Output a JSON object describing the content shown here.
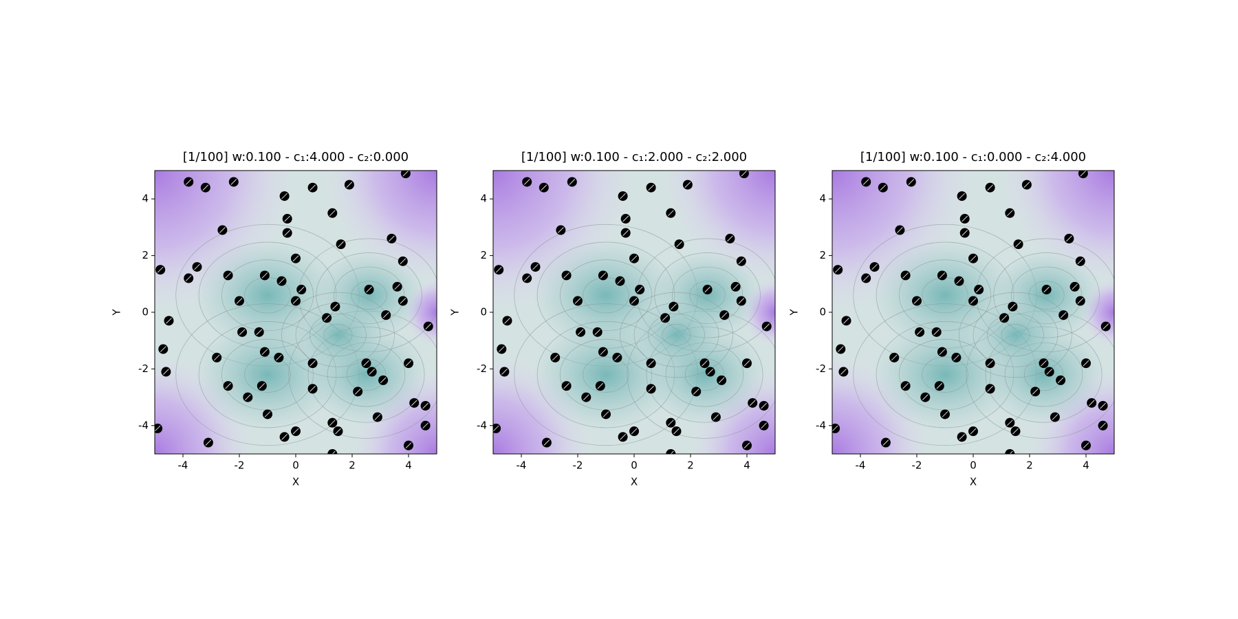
{
  "chart_data": [
    {
      "type": "scatter",
      "title": "[1/100] w:0.100 - c₁:4.000 - c₂:0.000",
      "xlabel": "X",
      "ylabel": "Y",
      "xlim": [
        -5,
        5
      ],
      "ylim": [
        -5,
        5
      ],
      "xticks": [
        -4,
        -2,
        0,
        2,
        4
      ],
      "yticks": [
        -4,
        -2,
        0,
        2,
        4
      ],
      "color": "#000000",
      "x": [
        -3.8,
        -3.2,
        -2.2,
        -0.4,
        0.6,
        1.9,
        3.9,
        -2.6,
        -0.3,
        1.3,
        -0.3,
        1.6,
        3.4,
        3.8,
        0.0,
        -4.8,
        -3.5,
        -3.8,
        -2.4,
        -1.1,
        -0.5,
        0.2,
        2.6,
        3.6,
        3.8,
        -2.0,
        0.0,
        1.4,
        1.1,
        3.2,
        4.7,
        -4.5,
        -1.9,
        -1.3,
        -4.7,
        -2.8,
        -1.1,
        -0.6,
        0.6,
        2.5,
        2.7,
        3.1,
        4.0,
        -4.6,
        -2.4,
        -1.2,
        0.6,
        2.2,
        -1.7,
        -1.0,
        1.3,
        1.5,
        2.9,
        4.2,
        4.6,
        -4.9,
        -3.1,
        -0.4,
        0.0,
        1.3,
        4.0,
        4.6
      ],
      "y": [
        4.6,
        4.4,
        4.6,
        4.1,
        4.4,
        4.5,
        4.9,
        2.9,
        3.3,
        3.5,
        2.8,
        2.4,
        2.6,
        1.8,
        1.9,
        1.5,
        1.6,
        1.2,
        1.3,
        1.3,
        1.1,
        0.8,
        0.8,
        0.9,
        0.4,
        0.4,
        0.4,
        0.2,
        -0.2,
        -0.1,
        -0.5,
        -0.3,
        -0.7,
        -0.7,
        -1.3,
        -1.6,
        -1.4,
        -1.6,
        -1.8,
        -1.8,
        -2.1,
        -2.4,
        -1.8,
        -2.1,
        -2.6,
        -2.6,
        -2.7,
        -2.8,
        -3.0,
        -3.6,
        -3.9,
        -4.2,
        -3.7,
        -3.2,
        -3.3,
        -4.1,
        -4.6,
        -4.4,
        -4.2,
        -5.0,
        -4.7,
        -4.0
      ]
    },
    {
      "type": "scatter",
      "title": "[1/100] w:0.100 - c₁:2.000 - c₂:2.000",
      "xlabel": "X",
      "ylabel": "Y",
      "xlim": [
        -5,
        5
      ],
      "ylim": [
        -5,
        5
      ],
      "xticks": [
        -4,
        -2,
        0,
        2,
        4
      ],
      "yticks": [
        -4,
        -2,
        0,
        2,
        4
      ],
      "color": "#000000",
      "x": [
        -3.8,
        -3.2,
        -2.2,
        -0.4,
        0.6,
        1.9,
        3.9,
        -2.6,
        -0.3,
        1.3,
        -0.3,
        1.6,
        3.4,
        3.8,
        0.0,
        -4.8,
        -3.5,
        -3.8,
        -2.4,
        -1.1,
        -0.5,
        0.2,
        2.6,
        3.6,
        3.8,
        -2.0,
        0.0,
        1.4,
        1.1,
        3.2,
        4.7,
        -4.5,
        -1.9,
        -1.3,
        -4.7,
        -2.8,
        -1.1,
        -0.6,
        0.6,
        2.5,
        2.7,
        3.1,
        4.0,
        -4.6,
        -2.4,
        -1.2,
        0.6,
        2.2,
        -1.7,
        -1.0,
        1.3,
        1.5,
        2.9,
        4.2,
        4.6,
        -4.9,
        -3.1,
        -0.4,
        0.0,
        1.3,
        4.0,
        4.6
      ],
      "y": [
        4.6,
        4.4,
        4.6,
        4.1,
        4.4,
        4.5,
        4.9,
        2.9,
        3.3,
        3.5,
        2.8,
        2.4,
        2.6,
        1.8,
        1.9,
        1.5,
        1.6,
        1.2,
        1.3,
        1.3,
        1.1,
        0.8,
        0.8,
        0.9,
        0.4,
        0.4,
        0.4,
        0.2,
        -0.2,
        -0.1,
        -0.5,
        -0.3,
        -0.7,
        -0.7,
        -1.3,
        -1.6,
        -1.4,
        -1.6,
        -1.8,
        -1.8,
        -2.1,
        -2.4,
        -1.8,
        -2.1,
        -2.6,
        -2.6,
        -2.7,
        -2.8,
        -3.0,
        -3.6,
        -3.9,
        -4.2,
        -3.7,
        -3.2,
        -3.3,
        -4.1,
        -4.6,
        -4.4,
        -4.2,
        -5.0,
        -4.7,
        -4.0
      ]
    },
    {
      "type": "scatter",
      "title": "[1/100] w:0.100 - c₁:0.000 - c₂:4.000",
      "xlabel": "X",
      "ylabel": "Y",
      "xlim": [
        -5,
        5
      ],
      "ylim": [
        -5,
        5
      ],
      "xticks": [
        -4,
        -2,
        0,
        2,
        4
      ],
      "yticks": [
        -4,
        -2,
        0,
        2,
        4
      ],
      "color": "#000000",
      "x": [
        -3.8,
        -3.2,
        -2.2,
        -0.4,
        0.6,
        1.9,
        3.9,
        -2.6,
        -0.3,
        1.3,
        -0.3,
        1.6,
        3.4,
        3.8,
        0.0,
        -4.8,
        -3.5,
        -3.8,
        -2.4,
        -1.1,
        -0.5,
        0.2,
        2.6,
        3.6,
        3.8,
        -2.0,
        0.0,
        1.4,
        1.1,
        3.2,
        4.7,
        -4.5,
        -1.9,
        -1.3,
        -4.7,
        -2.8,
        -1.1,
        -0.6,
        0.6,
        2.5,
        2.7,
        3.1,
        4.0,
        -4.6,
        -2.4,
        -1.2,
        0.6,
        2.2,
        -1.7,
        -1.0,
        1.3,
        1.5,
        2.9,
        4.2,
        4.6,
        -4.9,
        -3.1,
        -0.4,
        0.0,
        1.3,
        4.0,
        4.6
      ],
      "y": [
        4.6,
        4.4,
        4.6,
        4.1,
        4.4,
        4.5,
        4.9,
        2.9,
        3.3,
        3.5,
        2.8,
        2.4,
        2.6,
        1.8,
        1.9,
        1.5,
        1.6,
        1.2,
        1.3,
        1.3,
        1.1,
        0.8,
        0.8,
        0.9,
        0.4,
        0.4,
        0.4,
        0.2,
        -0.2,
        -0.1,
        -0.5,
        -0.3,
        -0.7,
        -0.7,
        -1.3,
        -1.6,
        -1.4,
        -1.6,
        -1.8,
        -1.8,
        -2.1,
        -2.4,
        -1.8,
        -2.1,
        -2.6,
        -2.6,
        -2.7,
        -2.8,
        -3.0,
        -3.6,
        -3.9,
        -4.2,
        -3.7,
        -3.2,
        -3.3,
        -4.1,
        -4.6,
        -4.4,
        -4.2,
        -5.0,
        -4.7,
        -4.0
      ]
    }
  ]
}
